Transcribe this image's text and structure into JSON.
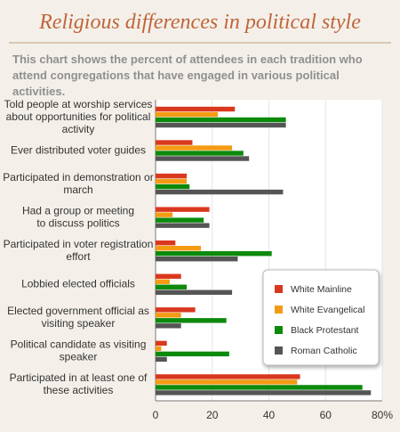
{
  "title": "Religious differences in political style",
  "subtitle": "This chart shows the percent of attendees in each tradition who attend congregations that have engaged in various political activities.",
  "colors": {
    "white_mainline": "#d9381e",
    "white_evangelical": "#f39b14",
    "black_protestant": "#0c8a0c",
    "roman_catholic": "#555555"
  },
  "chart_data": {
    "type": "bar",
    "orientation": "horizontal",
    "categories": [
      [
        "Told people at worship services",
        "about opportunities for political",
        "activity"
      ],
      [
        "Ever distributed voter guides"
      ],
      [
        "Participated in demonstration or",
        "march"
      ],
      [
        "Had a group or meeting",
        "to discuss politics"
      ],
      [
        "Participated in voter registration",
        "effort"
      ],
      [
        "Lobbied elected officials"
      ],
      [
        "Elected government official as",
        "visiting speaker"
      ],
      [
        "Political candidate as visiting",
        "speaker"
      ],
      [
        "Participated in at least one of",
        "these activities"
      ]
    ],
    "series": [
      {
        "name": "White Mainline",
        "color": "#d9381e",
        "values": [
          28,
          13,
          11,
          19,
          7,
          9,
          14,
          4,
          51
        ]
      },
      {
        "name": "White Evangelical",
        "color": "#f39b14",
        "values": [
          22,
          27,
          11,
          6,
          16,
          5,
          9,
          2,
          50
        ]
      },
      {
        "name": "Black Protestant",
        "color": "#0c8a0c",
        "values": [
          46,
          31,
          12,
          17,
          41,
          11,
          25,
          26,
          73
        ]
      },
      {
        "name": "Roman Catholic",
        "color": "#555555",
        "values": [
          46,
          33,
          45,
          19,
          29,
          27,
          9,
          4,
          76
        ]
      }
    ],
    "xlim": [
      0,
      80
    ],
    "xticks": [
      "0",
      "20",
      "40",
      "60",
      "80%"
    ],
    "legend_position": "right"
  }
}
